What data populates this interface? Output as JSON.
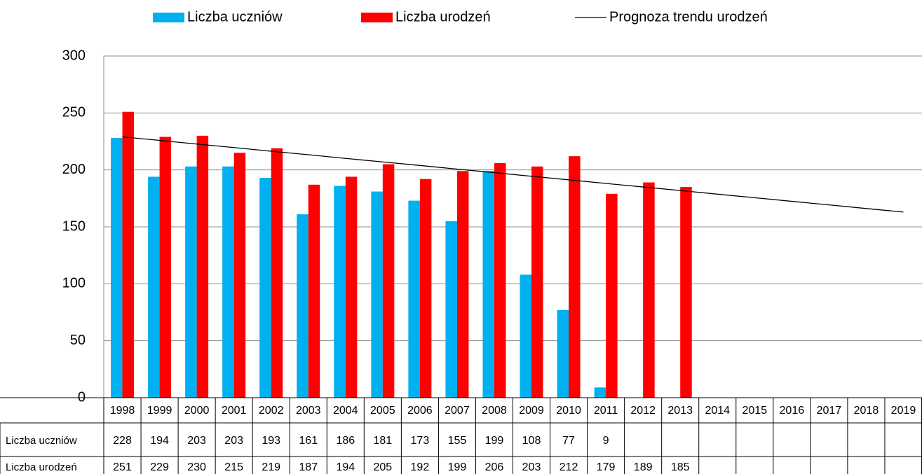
{
  "chart_data": {
    "type": "bar",
    "categories": [
      "1998",
      "1999",
      "2000",
      "2001",
      "2002",
      "2003",
      "2004",
      "2005",
      "2006",
      "2007",
      "2008",
      "2009",
      "2010",
      "2011",
      "2012",
      "2013",
      "2014",
      "2015",
      "2016",
      "2017",
      "2018",
      "2019"
    ],
    "series": [
      {
        "name": "Liczba uczniów",
        "color": "#00b0f0",
        "values": [
          228,
          194,
          203,
          203,
          193,
          161,
          186,
          181,
          173,
          155,
          199,
          108,
          77,
          9,
          null,
          null,
          null,
          null,
          null,
          null,
          null,
          null
        ]
      },
      {
        "name": "Liczba urodzeń",
        "color": "#ff0000",
        "values": [
          251,
          229,
          230,
          215,
          219,
          187,
          194,
          205,
          192,
          199,
          206,
          203,
          212,
          179,
          189,
          185,
          null,
          null,
          null,
          null,
          null,
          null
        ]
      },
      {
        "name": "Prognoza trendu urodzeń",
        "type": "line",
        "color": "#000000",
        "values": [
          229,
          225.9,
          222.7,
          219.6,
          216.4,
          213.3,
          210.1,
          207.0,
          203.9,
          200.7,
          197.6,
          194.4,
          191.3,
          188.1,
          185.0,
          181.9,
          178.7,
          175.6,
          172.4,
          169.3,
          166.1,
          163
        ]
      }
    ],
    "ylim": [
      0,
      300
    ],
    "yticks": [
      0,
      50,
      100,
      150,
      200,
      250,
      300
    ],
    "grid": true
  }
}
